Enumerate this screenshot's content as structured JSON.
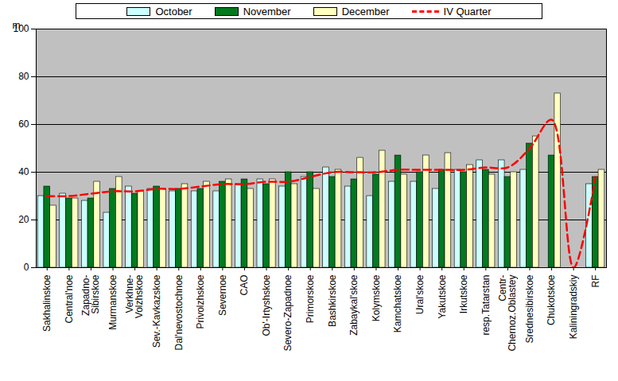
{
  "chart_data": {
    "type": "bar",
    "categories": [
      "Sakhalinskoe",
      "Central'noe",
      "Zapadno-\nSibirskoe",
      "Murmanskoe",
      "Verkhne-\nVolzhskoe",
      "Sev.-Kavkazskoe",
      "Dal'nevostochnoe",
      "Privolzhskoe",
      "Severnoe",
      "CAO",
      "Ob'-Irtyshskoe",
      "Severo-Zapadnoe",
      "Primorskoe",
      "Bashkirskoe",
      "Zabaykal'skoe",
      "Kolymskoe",
      "Kamchatskoe",
      "Ural'skoe",
      "Yakutskoe",
      "Irkutskoe",
      "resp.Tatarstan",
      "Centr-\nChernoz.Oblastey",
      "Srednesibirskoe",
      "Chukotskoe",
      "Kaliningradskiy",
      "RF"
    ],
    "series": [
      {
        "name": "October",
        "color": "#ccffff",
        "values": [
          30,
          31,
          28,
          23,
          34,
          33,
          32,
          32,
          32,
          35,
          37,
          34,
          38,
          42,
          34,
          30,
          36,
          36,
          33,
          41,
          45,
          45,
          41,
          null,
          null,
          35
        ]
      },
      {
        "name": "November",
        "color": "#007a1f",
        "values": [
          34,
          29,
          29,
          33,
          31,
          34,
          33,
          33,
          36,
          37,
          35,
          40,
          40,
          38,
          37,
          39,
          47,
          40,
          41,
          40,
          41,
          38,
          52,
          47,
          null,
          38
        ]
      },
      {
        "name": "December",
        "color": "#ffffc0",
        "values": [
          26,
          29,
          36,
          38,
          32,
          33,
          35,
          36,
          37,
          33,
          37,
          35,
          33,
          41,
          46,
          49,
          39,
          47,
          48,
          43,
          39,
          40,
          55,
          73,
          null,
          41
        ]
      },
      {
        "name": "IV Quarter",
        "color": "#ff0000",
        "type": "line",
        "line_style": "dashed",
        "values": [
          30,
          30,
          31,
          32,
          32,
          33,
          33,
          34,
          35,
          35,
          36,
          36,
          38,
          40,
          40,
          40,
          41,
          41,
          41,
          41,
          42,
          42,
          50,
          62,
          0,
          38
        ]
      }
    ],
    "ylabel": "m",
    "ylim": [
      0,
      100
    ],
    "yticks": [
      0,
      20,
      40,
      60,
      80,
      100
    ],
    "grid": true,
    "legend": "top"
  }
}
